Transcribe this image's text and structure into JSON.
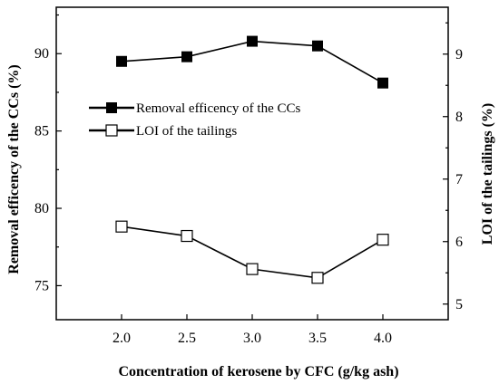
{
  "chart_data": {
    "type": "line",
    "x": [
      2.0,
      2.5,
      3.0,
      3.5,
      4.0
    ],
    "x_tick_labels": [
      "2.0",
      "2.5",
      "3.0",
      "3.5",
      "4.0"
    ],
    "xlim": [
      1.5,
      4.5
    ],
    "xlabel": "Concentration of kerosene by CFC (g/kg ash)",
    "y_left": {
      "label": "Removal efficency of the CCs (%)",
      "ylim": [
        72.8,
        93.0
      ],
      "ticks": [
        75,
        80,
        85,
        90
      ],
      "tick_labels": [
        "75",
        "80",
        "85",
        "90"
      ]
    },
    "y_right": {
      "label": "LOI of the tailings (%)",
      "ylim": [
        4.75,
        9.75
      ],
      "ticks": [
        5,
        6,
        7,
        8,
        9
      ],
      "tick_labels": [
        "5",
        "6",
        "7",
        "8",
        "9"
      ]
    },
    "series": [
      {
        "name": "Removal efficency of the CCs",
        "axis": "left",
        "marker": "filled-square",
        "color": "#000000",
        "values": [
          89.5,
          89.8,
          90.8,
          90.5,
          88.1
        ]
      },
      {
        "name": "LOI of the tailings",
        "axis": "right",
        "marker": "open-square",
        "color": "#000000",
        "values": [
          6.24,
          6.09,
          5.56,
          5.42,
          6.03
        ]
      }
    ],
    "legend": {
      "placement": "upper-left-inside"
    },
    "grid": false
  }
}
